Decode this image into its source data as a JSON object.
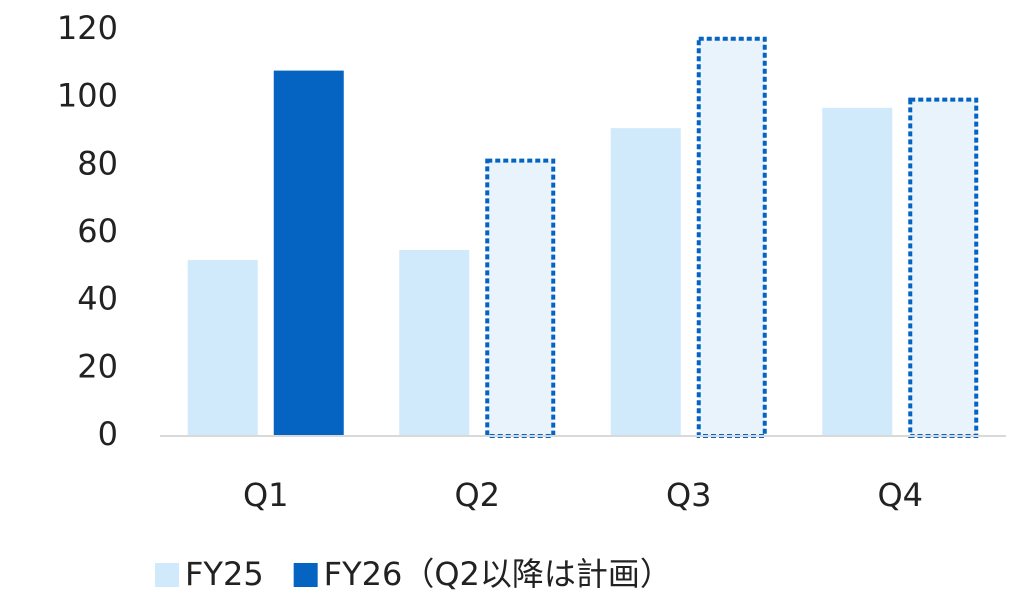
{
  "chart_data": {
    "type": "bar",
    "categories": [
      "Q1",
      "Q2",
      "Q3",
      "Q4"
    ],
    "series": [
      {
        "name": "FY25",
        "color": "#d0eafb",
        "values": [
          52,
          55,
          91,
          97
        ],
        "styles": [
          "solid",
          "solid",
          "solid",
          "solid"
        ]
      },
      {
        "name": "FY26（Q2以降は計画）",
        "color": "#0563c1",
        "values": [
          108,
          82,
          118,
          100
        ],
        "styles": [
          "solid",
          "dashed",
          "dashed",
          "dashed"
        ]
      }
    ],
    "ylim": [
      0,
      120
    ],
    "yticks": [
      0,
      20,
      40,
      60,
      80,
      100,
      120
    ],
    "grid": false,
    "legend": "bottom"
  }
}
